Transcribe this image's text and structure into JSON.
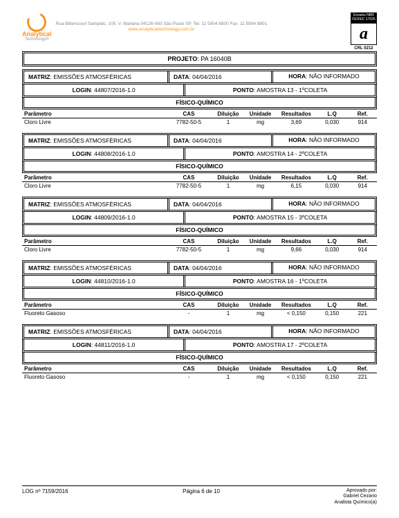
{
  "header": {
    "company": "Analytical",
    "subline": "Technology®",
    "address": "Rua Bittencourt Sampaio, 105. V. Mariana 04126-060 São Paulo SP. Tel. 11 5904 8800 Fax. 11 5904 8801",
    "url": "www.analyticaltechnology.com.br",
    "cert_top": "Ensaios NBR ISO/IEC 17025",
    "cert_mid": "a",
    "cert_bot": "CRL 0212"
  },
  "projeto_label": "PROJETO",
  "projeto_value": "PA 16040B",
  "labels": {
    "matriz": "MATRIZ",
    "data": "DATA",
    "hora": "HORA",
    "login": "LOGIN",
    "ponto": "PONTO",
    "section": "FÍSICO-QUÍMICO",
    "cols": {
      "par": "Parâmetro",
      "cas": "CAS",
      "dil": "Diluição",
      "uni": "Unidade",
      "res": "Resultados",
      "lq": "L.Q",
      "ref": "Ref."
    }
  },
  "blocks": [
    {
      "matriz": "EMISSÕES ATMOSFÉRICAS",
      "data": "04/04/2016",
      "hora": "NÃO INFORMADO",
      "login": "44807/2016-1.0",
      "ponto": "AMOSTRA 13 - 1ºCOLETA",
      "rows": [
        {
          "par": "Cloro Livre",
          "cas": "7782-50-5",
          "dil": "1",
          "uni": "mg",
          "res": "3,69",
          "lq": "0,030",
          "ref": "914"
        }
      ]
    },
    {
      "matriz": "EMISSÕES ATMOSFÉRICAS",
      "data": "04/04/2016",
      "hora": "NÃO INFORMADO",
      "login": "44808/2016-1.0",
      "ponto": "AMOSTRA 14 - 2ºCOLETA",
      "rows": [
        {
          "par": "Cloro Livre",
          "cas": "7782-50-5",
          "dil": "1",
          "uni": "mg",
          "res": "6,15",
          "lq": "0,030",
          "ref": "914"
        }
      ]
    },
    {
      "matriz": "EMISSÕES ATMOSFÉRICAS",
      "data": "04/04/2016",
      "hora": "NÃO INFORMADO",
      "login": "44809/2016-1.0",
      "ponto": "AMOSTRA 15 - 3ºCOLETA",
      "rows": [
        {
          "par": "Cloro Livre",
          "cas": "7782-50-5",
          "dil": "1",
          "uni": "mg",
          "res": "9,66",
          "lq": "0,030",
          "ref": "914"
        }
      ]
    },
    {
      "matriz": "EMISSÕES ATMOSFÉRICAS",
      "data": "04/04/2016",
      "hora": "NÃO INFORMADO",
      "login": "44810/2016-1.0",
      "ponto": "AMOSTRA 16 - 1ºCOLETA",
      "rows": [
        {
          "par": "Fluoreto Gasoso",
          "cas": "-",
          "dil": "1",
          "uni": "mg",
          "res": "< 0,150",
          "lq": "0,150",
          "ref": "221"
        }
      ]
    },
    {
      "matriz": "EMISSÕES ATMOSFÉRICAS",
      "data": "04/04/2016",
      "hora": "NÃO INFORMADO",
      "login": "44811/2016-1.0",
      "ponto": "AMOSTRA 17 - 2ºCOLETA",
      "rows": [
        {
          "par": "Fluoreto Gasoso",
          "cas": "-",
          "dil": "1",
          "uni": "mg",
          "res": "< 0,150",
          "lq": "0,150",
          "ref": "221"
        }
      ]
    }
  ],
  "footer": {
    "log": "LOG nº 7159/2016",
    "page": "Página 6 de 10",
    "approved": "Aprovado por:",
    "name": "Gabriel Cezario",
    "role": "Analista Químico(a)"
  }
}
